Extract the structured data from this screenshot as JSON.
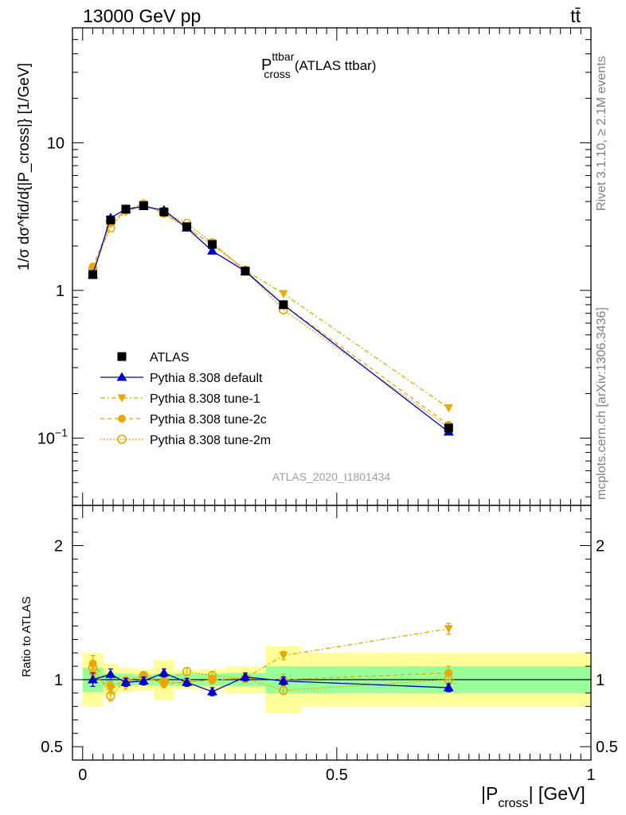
{
  "header": {
    "energy_label": "13000 GeV pp",
    "process_label": "tt̄",
    "analysis_id": "ATLAS_2020_I1801434",
    "side_rivet": "Rivet 3.1.10, ≥ 2.1M events",
    "side_site": "mcplots.cern.ch [arXiv:1306.3436]"
  },
  "colors": {
    "data": "#000000",
    "default": "#0000cc",
    "tune": "#e8a800",
    "band_inner": "#99ff99",
    "band_outer": "#ffff99"
  },
  "chart_data": [
    {
      "type": "line",
      "panel": "main",
      "title": "P_cross^ttbar (ATLAS ttbar)",
      "title_parts": {
        "main": "P",
        "sup": "ttbar",
        "sub": "cross",
        "rest": "(ATLAS ttbar)"
      },
      "ylabel": "1/σ dσ^fid/d{|P_cross|} [1/GeV]",
      "yscale": "log",
      "ylim": [
        0.035,
        60
      ],
      "xlim": [
        -0.02,
        1.0
      ],
      "yticks": [
        {
          "value": 0.1,
          "base": "10",
          "exp": "−1"
        },
        {
          "value": 1,
          "label": "1"
        },
        {
          "value": 10,
          "label": "10"
        }
      ],
      "legend_position": "center-left",
      "x": [
        0.02,
        0.055,
        0.085,
        0.12,
        0.16,
        0.205,
        0.255,
        0.32,
        0.395,
        0.72
      ],
      "bin_edges": [
        0.0,
        0.04,
        0.07,
        0.1,
        0.14,
        0.18,
        0.23,
        0.28,
        0.36,
        0.43,
        1.0
      ],
      "series": [
        {
          "name": "ATLAS",
          "style": "data",
          "values": [
            1.28,
            3.0,
            3.55,
            3.75,
            3.4,
            2.7,
            2.05,
            1.35,
            0.8,
            0.117
          ],
          "errors": [
            0.07,
            0.1,
            0.1,
            0.1,
            0.1,
            0.08,
            0.07,
            0.05,
            0.03,
            0.006
          ]
        },
        {
          "name": "Pythia 8.308 default",
          "style": "default",
          "values": [
            1.28,
            3.1,
            3.55,
            3.7,
            3.5,
            2.65,
            1.85,
            1.35,
            0.8,
            0.11
          ]
        },
        {
          "name": "Pythia 8.308 tune-1",
          "style": "tune-1",
          "values": [
            1.3,
            2.85,
            3.4,
            3.8,
            3.35,
            2.65,
            2.05,
            1.37,
            0.95,
            0.16
          ]
        },
        {
          "name": "Pythia 8.308 tune-2c",
          "style": "tune-2c",
          "values": [
            1.45,
            2.85,
            3.5,
            3.85,
            3.3,
            2.65,
            2.05,
            1.37,
            0.8,
            0.123
          ]
        },
        {
          "name": "Pythia 8.308 tune-2m",
          "style": "tune-2m",
          "values": [
            1.4,
            2.65,
            3.5,
            3.85,
            3.35,
            2.85,
            2.1,
            1.37,
            0.74,
            0.118
          ]
        }
      ]
    },
    {
      "type": "line",
      "panel": "ratio",
      "ylabel": "Ratio to ATLAS",
      "xlabel": "|P_cross| [GeV]",
      "xlabel_parts": {
        "pre": "|P",
        "sub": "cross",
        "post": "| [GeV]"
      },
      "ylim": [
        0.4,
        2.3
      ],
      "xlim": [
        -0.02,
        1.0
      ],
      "yticks": [
        0.5,
        1,
        2
      ],
      "xticks": [
        0,
        0.5,
        1
      ],
      "x": [
        0.02,
        0.055,
        0.085,
        0.12,
        0.16,
        0.205,
        0.255,
        0.32,
        0.395,
        0.72
      ],
      "bin_edges": [
        0.0,
        0.04,
        0.07,
        0.1,
        0.14,
        0.18,
        0.23,
        0.28,
        0.36,
        0.43,
        1.0
      ],
      "band_inner": [
        0.09,
        0.05,
        0.045,
        0.04,
        0.045,
        0.045,
        0.045,
        0.05,
        0.1,
        0.1
      ],
      "band_outer": [
        0.2,
        0.12,
        0.09,
        0.08,
        0.15,
        0.07,
        0.08,
        0.1,
        0.25,
        0.2
      ],
      "series": [
        {
          "name": "Pythia 8.308 default",
          "style": "default",
          "values": [
            1.0,
            1.04,
            0.98,
            0.99,
            1.05,
            0.98,
            0.91,
            1.02,
            0.99,
            0.94
          ],
          "errors": [
            0.05,
            0.04,
            0.03,
            0.03,
            0.03,
            0.03,
            0.03,
            0.03,
            0.03,
            0.03
          ]
        },
        {
          "name": "Pythia 8.308 tune-1",
          "style": "tune-1",
          "values": [
            1.03,
            0.94,
            0.96,
            1.01,
            0.98,
            0.98,
            1.0,
            1.01,
            1.18,
            1.38
          ],
          "errors": [
            0.05,
            0.04,
            0.03,
            0.03,
            0.03,
            0.03,
            0.03,
            0.03,
            0.03,
            0.04
          ]
        },
        {
          "name": "Pythia 8.308 tune-2c",
          "style": "tune-2c",
          "values": [
            1.12,
            0.95,
            0.99,
            1.03,
            0.97,
            0.98,
            1.0,
            1.01,
            1.0,
            1.05
          ],
          "errors": [
            0.06,
            0.04,
            0.03,
            0.03,
            0.03,
            0.03,
            0.03,
            0.03,
            0.04,
            0.05
          ]
        },
        {
          "name": "Pythia 8.308 tune-2m",
          "style": "tune-2m",
          "values": [
            1.09,
            0.88,
            0.99,
            1.03,
            0.99,
            1.06,
            1.03,
            1.01,
            0.92,
            1.0
          ],
          "errors": [
            0.05,
            0.04,
            0.03,
            0.03,
            0.03,
            0.03,
            0.03,
            0.03,
            0.03,
            0.04
          ]
        }
      ]
    }
  ]
}
